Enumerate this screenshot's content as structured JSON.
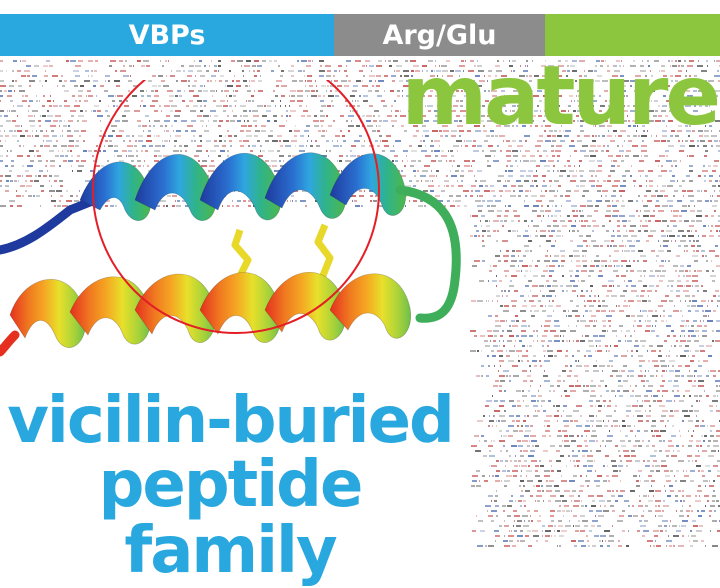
{
  "banner": {
    "segments": [
      {
        "label": "VBPs",
        "color": "#29a8df"
      },
      {
        "label": "Arg/Glu",
        "color": "#8c8c8c"
      },
      {
        "label": "",
        "color": "#8cc63f"
      }
    ]
  },
  "overlay_word": {
    "text": "mature",
    "color": "#8cc63f"
  },
  "title": {
    "line1": "vicilin-buried",
    "line2": "peptide family",
    "color": "#29a8df"
  },
  "figure": {
    "icon": "protein-helix-ribbon-icon",
    "highlight_color": "#e41e26",
    "gradient": [
      "#1f3a9e",
      "#2fa6e0",
      "#2fb38a",
      "#6cc04a",
      "#e8e02a",
      "#f5a623",
      "#e5301f"
    ]
  }
}
